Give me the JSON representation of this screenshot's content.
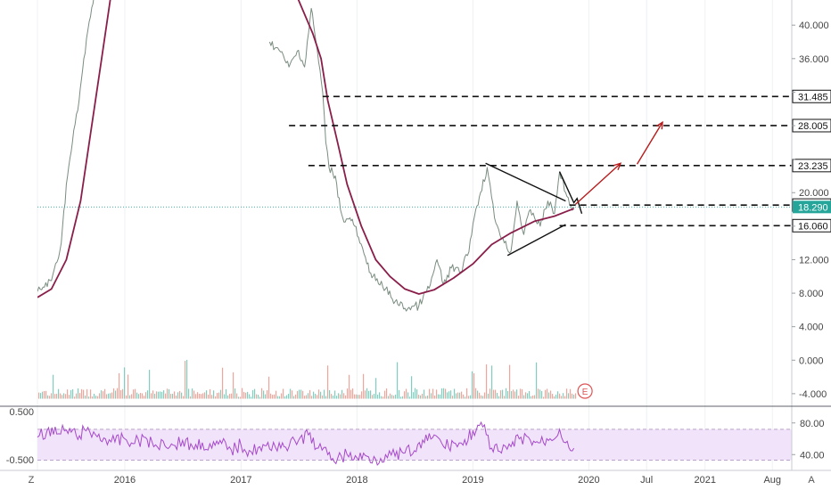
{
  "chart_data": {
    "type": "line",
    "title": "",
    "x_tick_labels": [
      "2016",
      "2017",
      "2018",
      "2019",
      "2020",
      "Jul",
      "2021",
      "Aug"
    ],
    "x_tick_dates": [
      "2016-01-01",
      "2017-01-01",
      "2018-01-01",
      "2019-01-01",
      "2020-01-01",
      "2020-07-01",
      "2021-01-01",
      "2021-08-01"
    ],
    "x_range": [
      "2015-04-01",
      "2021-10-01"
    ],
    "price_axis": {
      "ylim": [
        -5.5,
        43
      ],
      "tick_values": [
        -4,
        0,
        4,
        8,
        12,
        16,
        20,
        24,
        28,
        32,
        36,
        40
      ],
      "tick_labels": [
        "-4.000",
        "0.000",
        "4.000",
        "8.000",
        "12.000",
        "",
        "20.000",
        "",
        "",
        "",
        "36.000",
        "40.000"
      ],
      "grid": false
    },
    "series": [
      {
        "kind": "price",
        "color": "#7a8c80",
        "points": [
          [
            "2015-04-01",
            8.2
          ],
          [
            "2015-05-15",
            9.5
          ],
          [
            "2015-06-15",
            14
          ],
          [
            "2015-07-01",
            21
          ],
          [
            "2015-07-20",
            26
          ],
          [
            "2015-08-10",
            31
          ],
          [
            "2015-08-25",
            36
          ],
          [
            "2015-09-15",
            41
          ],
          [
            "2015-10-01",
            45
          ],
          [
            "2017-04-01",
            38
          ],
          [
            "2017-05-01",
            37
          ],
          [
            "2017-06-01",
            35
          ],
          [
            "2017-07-01",
            37
          ],
          [
            "2017-07-20",
            35
          ],
          [
            "2017-08-10",
            42
          ],
          [
            "2017-08-25",
            38
          ],
          [
            "2017-09-15",
            32
          ],
          [
            "2017-09-25",
            26
          ],
          [
            "2017-10-05",
            23
          ],
          [
            "2017-10-25",
            22
          ],
          [
            "2017-11-10",
            18
          ],
          [
            "2017-11-25",
            16.5
          ],
          [
            "2017-12-10",
            17
          ],
          [
            "2017-12-25",
            16
          ],
          [
            "2018-01-10",
            14
          ],
          [
            "2018-02-01",
            11.5
          ],
          [
            "2018-03-01",
            9.5
          ],
          [
            "2018-04-01",
            8.5
          ],
          [
            "2018-05-01",
            7
          ],
          [
            "2018-06-01",
            6.2
          ],
          [
            "2018-07-15",
            6.5
          ],
          [
            "2018-08-20",
            9
          ],
          [
            "2018-09-10",
            12
          ],
          [
            "2018-09-30",
            9
          ],
          [
            "2018-10-25",
            11
          ],
          [
            "2018-11-20",
            10.5
          ],
          [
            "2018-12-15",
            12.5
          ],
          [
            "2019-01-10",
            18
          ],
          [
            "2019-01-25",
            20
          ],
          [
            "2019-02-15",
            23
          ],
          [
            "2019-03-10",
            17
          ],
          [
            "2019-04-10",
            14
          ],
          [
            "2019-05-01",
            13
          ],
          [
            "2019-05-20",
            19
          ],
          [
            "2019-06-10",
            15
          ],
          [
            "2019-07-01",
            18
          ],
          [
            "2019-08-01",
            16
          ],
          [
            "2019-08-25",
            19
          ],
          [
            "2019-09-15",
            17.5
          ],
          [
            "2019-10-01",
            22.5
          ],
          [
            "2019-10-20",
            20
          ],
          [
            "2019-11-05",
            18.5
          ],
          [
            "2019-11-15",
            18.29
          ]
        ]
      },
      {
        "kind": "moving-average",
        "color": "#8a1e4a",
        "points": [
          [
            "2015-04-01",
            7.5
          ],
          [
            "2015-05-15",
            8.5
          ],
          [
            "2015-07-01",
            12
          ],
          [
            "2015-08-15",
            19
          ],
          [
            "2015-09-15",
            27
          ],
          [
            "2015-10-20",
            36
          ],
          [
            "2015-11-20",
            44
          ],
          [
            "2017-05-01",
            47
          ],
          [
            "2017-07-01",
            43
          ],
          [
            "2017-08-15",
            39
          ],
          [
            "2017-09-10",
            36
          ],
          [
            "2017-10-01",
            31
          ],
          [
            "2017-11-01",
            26
          ],
          [
            "2017-12-01",
            21
          ],
          [
            "2018-01-15",
            16
          ],
          [
            "2018-03-01",
            12
          ],
          [
            "2018-04-15",
            10
          ],
          [
            "2018-06-01",
            8.5
          ],
          [
            "2018-07-15",
            7.9
          ],
          [
            "2018-09-01",
            8.4
          ],
          [
            "2018-11-01",
            9.8
          ],
          [
            "2019-01-01",
            11.5
          ],
          [
            "2019-03-01",
            13.8
          ],
          [
            "2019-05-01",
            15.2
          ],
          [
            "2019-07-15",
            16.6
          ],
          [
            "2019-09-15",
            17.2
          ],
          [
            "2019-11-15",
            18.1
          ]
        ]
      }
    ],
    "annotations": {
      "horizontal_levels": [
        {
          "value": 31.485,
          "label": "31.485",
          "from": "2017-09-15"
        },
        {
          "value": 28.005,
          "label": "28.005",
          "from": "2017-06-01"
        },
        {
          "value": 23.235,
          "label": "23.235",
          "from": "2017-08-01"
        },
        {
          "value": 18.52,
          "label": "18.520",
          "from": "2019-11-01"
        },
        {
          "value": 16.06,
          "label": "16.060",
          "from": "2019-10-01"
        }
      ],
      "current_price": {
        "value": 18.29,
        "label": "18.290",
        "color": "#26a69a"
      },
      "triangle_upper": [
        [
          "2019-02-10",
          23.5
        ],
        [
          "2019-10-20",
          19
        ]
      ],
      "triangle_lower": [
        [
          "2019-04-20",
          12.5
        ],
        [
          "2019-10-20",
          16.2
        ]
      ],
      "wedge_right": [
        [
          "2019-10-01",
          22.5
        ],
        [
          "2019-11-15",
          18.8
        ],
        [
          "2019-11-25",
          19.3
        ],
        [
          "2019-12-10",
          17.5
        ]
      ],
      "forecast_arrows": [
        [
          [
            "2019-11-20",
            18.6
          ],
          [
            "2020-04-10",
            23.5
          ]
        ],
        [
          [
            "2020-06-01",
            23.4
          ],
          [
            "2020-08-20",
            28.4
          ]
        ]
      ],
      "arrow_color": "#b71c1c",
      "earnings_marker": {
        "date": "2019-12-20",
        "label": "E",
        "color": "#e05252"
      }
    },
    "volume": {
      "baseline_value": -4.6,
      "up_color": "#7fcfc0",
      "down_color": "#f2a39a"
    },
    "rsi": {
      "ylim": [
        20,
        100
      ],
      "tick_values": [
        40,
        80
      ],
      "tick_labels": [
        "40.00",
        "80.00"
      ],
      "left_tick_labels": [
        "0.500",
        "-0.500"
      ],
      "band": [
        33,
        72
      ],
      "band_color": "#f0e3fa",
      "line_color": "#a64ac9",
      "points": [
        [
          "2015-04-01",
          62
        ],
        [
          "2015-05-01",
          70
        ],
        [
          "2015-06-01",
          66
        ],
        [
          "2015-07-01",
          71
        ],
        [
          "2015-08-01",
          64
        ],
        [
          "2015-09-01",
          70
        ],
        [
          "2015-10-01",
          65
        ],
        [
          "2015-11-01",
          60
        ],
        [
          "2015-12-01",
          56
        ],
        [
          "2016-01-01",
          60
        ],
        [
          "2016-02-01",
          54
        ],
        [
          "2016-03-01",
          62
        ],
        [
          "2016-04-01",
          50
        ],
        [
          "2016-05-01",
          57
        ],
        [
          "2016-06-01",
          52
        ],
        [
          "2016-07-01",
          58
        ],
        [
          "2016-08-01",
          50
        ],
        [
          "2016-09-01",
          55
        ],
        [
          "2016-10-01",
          48
        ],
        [
          "2016-11-01",
          54
        ],
        [
          "2016-12-01",
          46
        ],
        [
          "2017-01-01",
          52
        ],
        [
          "2017-02-01",
          44
        ],
        [
          "2017-03-01",
          50
        ],
        [
          "2017-04-01",
          47
        ],
        [
          "2017-05-01",
          55
        ],
        [
          "2017-06-01",
          50
        ],
        [
          "2017-07-01",
          58
        ],
        [
          "2017-08-01",
          65
        ],
        [
          "2017-09-01",
          48
        ],
        [
          "2017-10-01",
          40
        ],
        [
          "2017-11-01",
          35
        ],
        [
          "2017-12-01",
          40
        ],
        [
          "2018-01-01",
          36
        ],
        [
          "2018-02-01",
          38
        ],
        [
          "2018-03-01",
          34
        ],
        [
          "2018-04-01",
          40
        ],
        [
          "2018-05-01",
          38
        ],
        [
          "2018-06-01",
          42
        ],
        [
          "2018-07-01",
          45
        ],
        [
          "2018-08-01",
          55
        ],
        [
          "2018-09-01",
          65
        ],
        [
          "2018-10-01",
          50
        ],
        [
          "2018-11-01",
          55
        ],
        [
          "2018-12-01",
          52
        ],
        [
          "2019-01-01",
          70
        ],
        [
          "2019-02-01",
          75
        ],
        [
          "2019-03-01",
          48
        ],
        [
          "2019-04-01",
          42
        ],
        [
          "2019-05-01",
          50
        ],
        [
          "2019-06-01",
          62
        ],
        [
          "2019-07-01",
          58
        ],
        [
          "2019-08-01",
          55
        ],
        [
          "2019-09-01",
          60
        ],
        [
          "2019-10-01",
          72
        ],
        [
          "2019-10-20",
          55
        ],
        [
          "2019-11-15",
          48
        ]
      ]
    },
    "bottom_left_label": "Z",
    "bottom_right_label": "A"
  }
}
